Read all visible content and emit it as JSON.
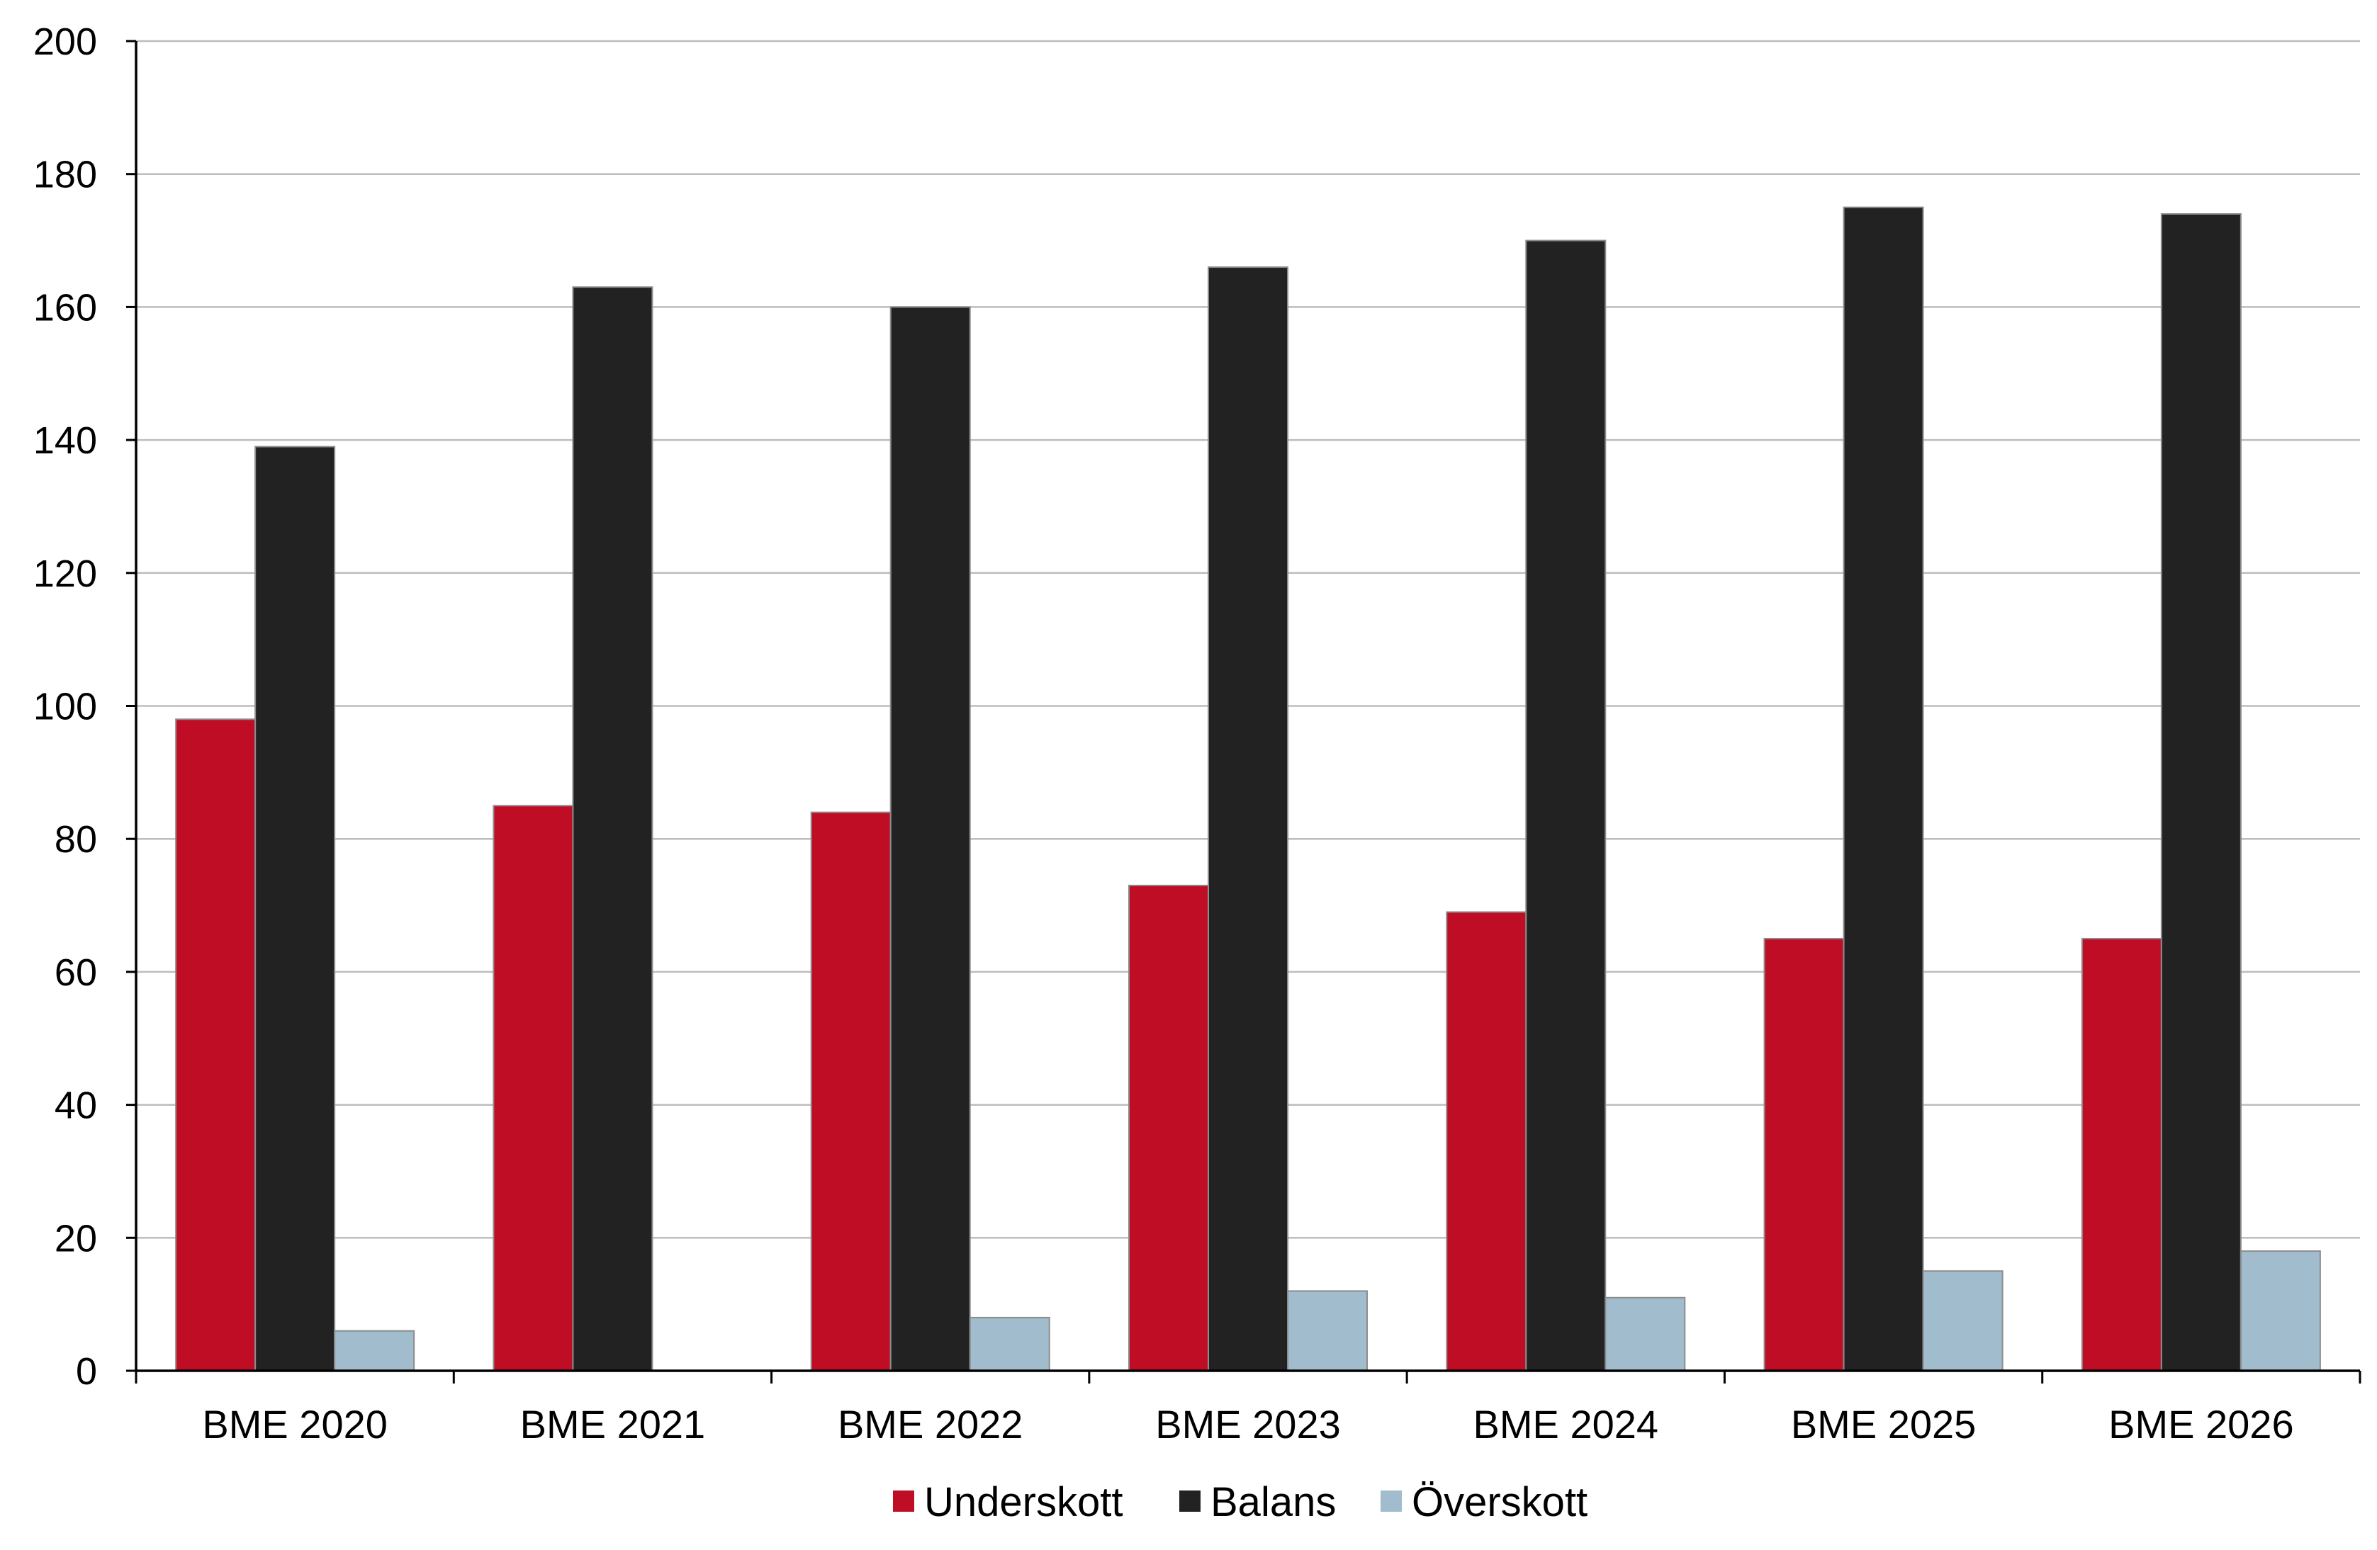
{
  "chart_data": {
    "type": "bar",
    "categories": [
      "BME 2020",
      "BME 2021",
      "BME 2022",
      "BME 2023",
      "BME 2024",
      "BME 2025",
      "BME 2026"
    ],
    "series": [
      {
        "name": "Underskott",
        "color": "#c00d26",
        "values": [
          98,
          85,
          84,
          73,
          69,
          65,
          65
        ]
      },
      {
        "name": "Balans",
        "color": "#222222",
        "values": [
          139,
          163,
          160,
          166,
          170,
          175,
          174
        ]
      },
      {
        "name": "Överskott",
        "color": "#a0bccd",
        "values": [
          6,
          0,
          8,
          12,
          11,
          15,
          18
        ]
      }
    ],
    "yticks": [
      "0",
      "20",
      "40",
      "60",
      "80",
      "100",
      "120",
      "140",
      "160",
      "180",
      "200"
    ],
    "ylim": [
      0,
      200
    ],
    "grid": true,
    "legend_position": "bottom"
  }
}
